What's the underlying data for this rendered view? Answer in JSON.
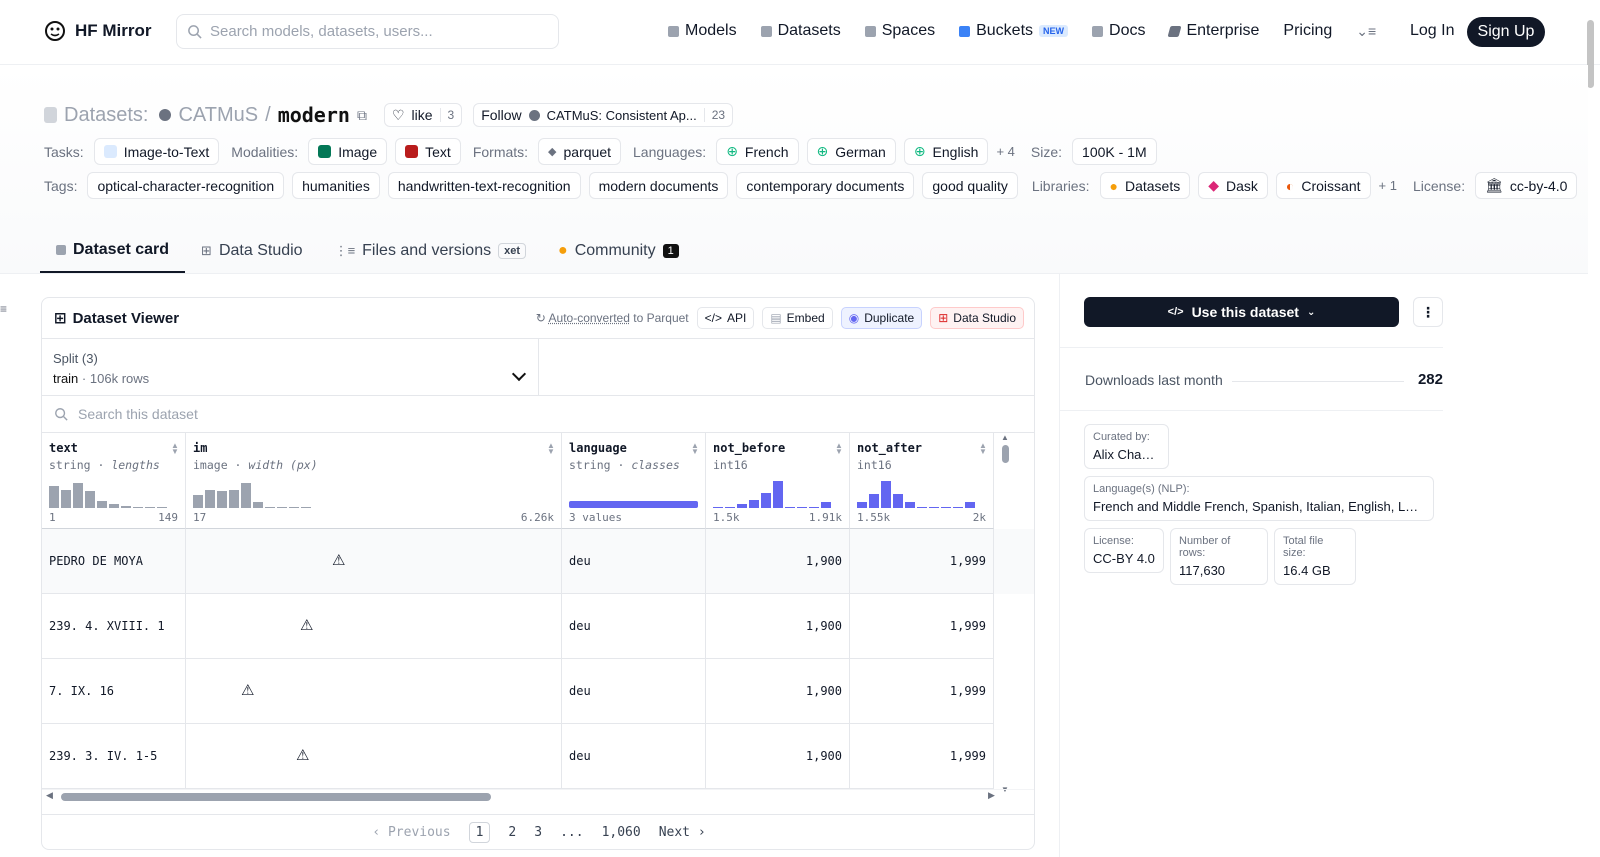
{
  "header": {
    "brand": "HF Mirror",
    "search_placeholder": "Search models, datasets, users...",
    "nav": [
      {
        "label": "Models",
        "icon": "cube-icon"
      },
      {
        "label": "Datasets",
        "icon": "database-icon"
      },
      {
        "label": "Spaces",
        "icon": "grid-icon"
      },
      {
        "label": "Buckets",
        "icon": "bucket-icon",
        "badge": "NEW"
      },
      {
        "label": "Docs",
        "icon": "book-icon"
      },
      {
        "label": "Enterprise",
        "icon": "enterprise-icon"
      },
      {
        "label": "Pricing"
      }
    ],
    "login": "Log In",
    "signup": "Sign Up"
  },
  "repo": {
    "prefix": "Datasets:",
    "owner": "CATMuS",
    "name": "modern",
    "like_label": "like",
    "like_count": "3",
    "follow_label": "Follow",
    "follow_org": "CATMuS: Consistent Ap...",
    "follow_count": "23"
  },
  "meta_rows": {
    "tasks_label": "Tasks:",
    "tasks": [
      "Image-to-Text"
    ],
    "modalities_label": "Modalities:",
    "modalities": [
      "Image",
      "Text"
    ],
    "formats_label": "Formats:",
    "formats": [
      "parquet"
    ],
    "languages_label": "Languages:",
    "languages": [
      "French",
      "German",
      "English"
    ],
    "languages_more": "+ 4",
    "size_label": "Size:",
    "size": "100K - 1M",
    "tags_label": "Tags:",
    "tags": [
      "optical-character-recognition",
      "humanities",
      "handwritten-text-recognition",
      "modern documents",
      "contemporary documents",
      "good quality"
    ],
    "libraries_label": "Libraries:",
    "libraries": [
      "Datasets",
      "Dask",
      "Croissant"
    ],
    "libraries_more": "+ 1",
    "license_label": "License:",
    "license": "cc-by-4.0"
  },
  "tabs": [
    {
      "label": "Dataset card",
      "active": true
    },
    {
      "label": "Data Studio"
    },
    {
      "label": "Files and versions",
      "badge": "xet"
    },
    {
      "label": "Community",
      "badge": "1"
    }
  ],
  "viewer": {
    "title": "Dataset Viewer",
    "auto_converted": "Auto-converted",
    "to_parquet": "to Parquet",
    "api": "API",
    "embed": "Embed",
    "duplicate": "Duplicate",
    "data_studio": "Data Studio",
    "split_label": "Split (3)",
    "split_value": "train",
    "split_rows": "106k rows",
    "search_placeholder": "Search this dataset",
    "columns": [
      {
        "name": "text",
        "type": "string",
        "stat": "lengths",
        "min": "1",
        "max": "149",
        "hist": [
          0.8,
          0.65,
          0.9,
          0.6,
          0.25,
          0.15,
          0.08,
          0.05,
          0.05,
          0.05
        ]
      },
      {
        "name": "im",
        "type": "image",
        "stat": "width (px)",
        "min": "17",
        "max": "6.26k",
        "hist": [
          0.45,
          0.65,
          0.6,
          0.65,
          0.9,
          0.2,
          0.05,
          0.05,
          0.05,
          0.05
        ]
      },
      {
        "name": "language",
        "type": "string",
        "stat": "classes",
        "min": "3 values",
        "max": ""
      },
      {
        "name": "not_before",
        "type": "int16",
        "stat": "",
        "min": "1.5k",
        "max": "1.91k",
        "hist": [
          0.05,
          0.05,
          0.15,
          0.3,
          0.55,
          0.95,
          0.02,
          0.02,
          0.02,
          0.2
        ]
      },
      {
        "name": "not_after",
        "type": "int16",
        "stat": "",
        "min": "1.55k",
        "max": "2k",
        "hist": [
          0.2,
          0.5,
          0.95,
          0.5,
          0.2,
          0.02,
          0.02,
          0.05,
          0.02,
          0.2
        ]
      }
    ],
    "rows": [
      {
        "text": "PEDRO DE MOYA",
        "language": "deu",
        "not_before": "1,900",
        "not_after": "1,999"
      },
      {
        "text": "239. 4. XVIII. 1",
        "language": "deu",
        "not_before": "1,900",
        "not_after": "1,999"
      },
      {
        "text": "7. IX. 16",
        "language": "deu",
        "not_before": "1,900",
        "not_after": "1,999"
      },
      {
        "text": "239. 3. IV. 1-5",
        "language": "deu",
        "not_before": "1,900",
        "not_after": "1,999"
      }
    ],
    "pager": {
      "previous": "Previous",
      "pages": [
        "1",
        "2",
        "3",
        "...",
        "1,060"
      ],
      "next": "Next"
    }
  },
  "sidebar": {
    "use_dataset": "Use this dataset",
    "downloads_label": "Downloads last month",
    "downloads_value": "282",
    "curated_label": "Curated by:",
    "curated_value": "Alix Chagué",
    "languages_label": "Language(s) (NLP):",
    "languages_value": "French and Middle French, Spanish, Italian, English, Latin, German, Dutch",
    "license_label": "License:",
    "license_value": "CC-BY 4.0",
    "rows_label": "Number of rows:",
    "rows_value": "117,630",
    "filesize_label": "Total file size:",
    "filesize_value": "16.4 GB"
  },
  "colors": {
    "accent": "#6366f1",
    "dark": "#111827",
    "muted": "#6b7280"
  }
}
